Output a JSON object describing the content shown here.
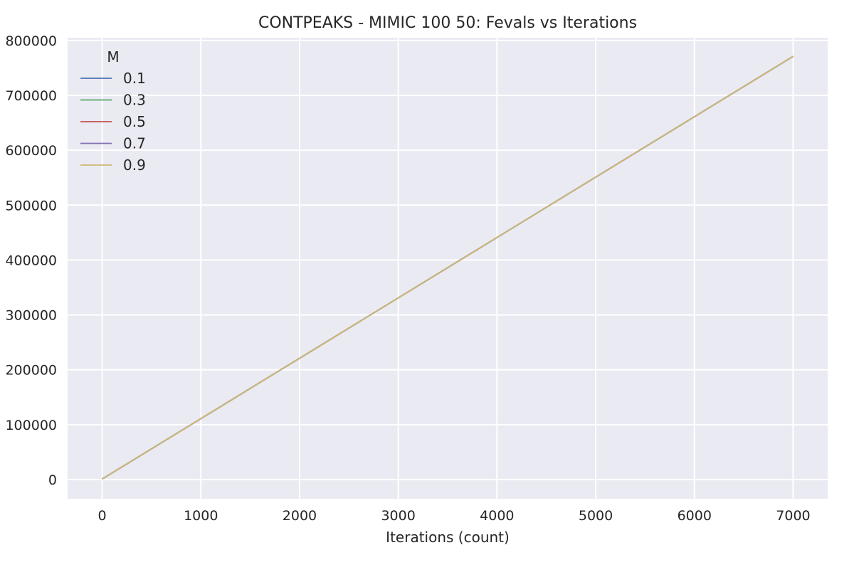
{
  "chart_data": {
    "type": "line",
    "title": "CONTPEAKS - MIMIC 100 50: Fevals vs Iterations",
    "xlabel": "Iterations (count)",
    "ylabel": "",
    "xlim": [
      -350,
      7350
    ],
    "ylim": [
      -35000,
      805000
    ],
    "xticks": [
      0,
      1000,
      2000,
      3000,
      4000,
      5000,
      6000,
      7000
    ],
    "yticks": [
      0,
      100000,
      200000,
      300000,
      400000,
      500000,
      600000,
      700000,
      800000
    ],
    "grid": true,
    "legend": {
      "title": "M",
      "placement": "top-left"
    },
    "series": [
      {
        "name": "0.1",
        "color": "#4c72b0",
        "x": [
          0,
          7000
        ],
        "y": [
          1000,
          771000
        ]
      },
      {
        "name": "0.3",
        "color": "#55a868",
        "x": [
          0,
          7000
        ],
        "y": [
          1000,
          771000
        ]
      },
      {
        "name": "0.5",
        "color": "#c44e52",
        "x": [
          0,
          7000
        ],
        "y": [
          1000,
          771000
        ]
      },
      {
        "name": "0.7",
        "color": "#8172b2",
        "x": [
          0,
          7000
        ],
        "y": [
          1000,
          771000
        ]
      },
      {
        "name": "0.9",
        "color": "#ccb974",
        "x": [
          0,
          7000
        ],
        "y": [
          1000,
          771000
        ]
      }
    ],
    "colors": {
      "background": "#eaeaf2",
      "grid": "#ffffff",
      "text": "#262626"
    }
  }
}
